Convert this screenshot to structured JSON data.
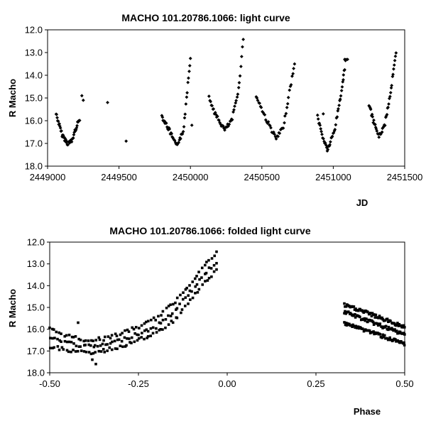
{
  "chart_data": [
    {
      "type": "scatter",
      "title": "MACHO 101.20786.1066: light curve",
      "xlabel": "JD",
      "ylabel": "R Macho",
      "xlim": [
        2449000,
        2451500
      ],
      "ylim": [
        12.0,
        18.0
      ],
      "y_inverted": true,
      "xticks": [
        2449000,
        2449500,
        2450000,
        2450500,
        2451000,
        2451500
      ],
      "xtick_labels": [
        "2449000",
        "2449500",
        "2450000",
        "2450500",
        "2451000",
        "2451500"
      ],
      "yticks": [
        12,
        13,
        14,
        15,
        16,
        17,
        18
      ],
      "ytick_labels": [
        "12.0",
        "13.0",
        "14.0",
        "15.0",
        "16.0",
        "17.0",
        "18.0"
      ],
      "grid": false,
      "series": [
        {
          "marker": "diamond",
          "segments": [
            {
              "x": [
                2449060,
                2449100,
                2449140,
                2449170,
                2449200,
                2449225
              ],
              "y": [
                15.7,
                16.6,
                17.0,
                16.9,
                16.3,
                15.9
              ]
            },
            {
              "x": [
                2449800,
                2449850,
                2449900,
                2449950,
                2449980,
                2450000
              ],
              "y": [
                15.8,
                16.4,
                17.1,
                16.5,
                14.5,
                13.2
              ]
            },
            {
              "x": [
                2450130,
                2450180,
                2450240,
                2450290,
                2450340,
                2450370
              ],
              "y": [
                15.0,
                15.8,
                16.4,
                16.0,
                14.5,
                12.4
              ]
            },
            {
              "x": [
                2450460,
                2450520,
                2450600,
                2450650,
                2450700,
                2450730
              ],
              "y": [
                14.9,
                15.8,
                16.8,
                16.3,
                14.5,
                13.5
              ]
            },
            {
              "x": [
                2450890,
                2450920,
                2450960,
                2451010,
                2451060,
                2451090
              ],
              "y": [
                15.8,
                16.6,
                17.3,
                16.4,
                14.6,
                13.2
              ]
            },
            {
              "x": [
                2451250,
                2451280,
                2451320,
                2451360,
                2451400,
                2451440
              ],
              "y": [
                15.3,
                16.0,
                16.7,
                16.2,
                14.8,
                13.0
              ]
            }
          ],
          "isolated": {
            "x": [
              2449240,
              2449250,
              2449420,
              2449550,
              2450010,
              2450930,
              2451070,
              2451080,
              2451100
            ],
            "y": [
              14.9,
              15.1,
              15.2,
              16.9,
              16.2,
              15.7,
              14.2,
              13.3,
              13.3
            ]
          }
        }
      ]
    },
    {
      "type": "scatter",
      "title": "MACHO 101.20786.1066: folded light curve",
      "xlabel": "Phase",
      "ylabel": "R Macho",
      "xlim": [
        -0.5,
        0.5
      ],
      "ylim": [
        12.0,
        18.0
      ],
      "y_inverted": true,
      "xticks": [
        -0.5,
        -0.25,
        0.0,
        0.25,
        0.5
      ],
      "xtick_labels": [
        "-0.50",
        "-0.25",
        "0.00",
        "0.25",
        "0.50"
      ],
      "yticks": [
        12,
        13,
        14,
        15,
        16,
        17,
        18
      ],
      "ytick_labels": [
        "12.0",
        "13.0",
        "14.0",
        "15.0",
        "16.0",
        "17.0",
        "18.0"
      ],
      "grid": false,
      "series": [
        {
          "marker": "square",
          "bands": [
            {
              "x": [
                -0.5,
                -0.45,
                -0.4,
                -0.35,
                -0.3,
                -0.25,
                -0.2,
                -0.15,
                -0.12,
                -0.09,
                -0.06,
                -0.03
              ],
              "y": [
                16.0,
                16.3,
                16.5,
                16.45,
                16.2,
                15.9,
                15.5,
                14.8,
                14.2,
                13.6,
                13.0,
                12.5
              ]
            },
            {
              "x": [
                -0.5,
                -0.45,
                -0.4,
                -0.35,
                -0.3,
                -0.25,
                -0.2,
                -0.15,
                -0.12,
                -0.09,
                -0.06,
                -0.03
              ],
              "y": [
                16.4,
                16.6,
                16.8,
                16.75,
                16.5,
                16.2,
                15.9,
                15.2,
                14.6,
                14.0,
                13.4,
                12.9
              ]
            },
            {
              "x": [
                -0.5,
                -0.45,
                -0.4,
                -0.35,
                -0.3,
                -0.25,
                -0.2,
                -0.15,
                -0.12,
                -0.09,
                -0.06,
                -0.03
              ],
              "y": [
                16.8,
                16.95,
                17.1,
                17.0,
                16.8,
                16.5,
                16.2,
                15.6,
                15.0,
                14.4,
                13.8,
                13.3
              ]
            },
            {
              "x": [
                0.33,
                0.37,
                0.41,
                0.45,
                0.5
              ],
              "y": [
                14.9,
                15.1,
                15.35,
                15.6,
                15.9
              ]
            },
            {
              "x": [
                0.33,
                0.37,
                0.41,
                0.45,
                0.5
              ],
              "y": [
                15.2,
                15.45,
                15.7,
                15.95,
                16.25
              ]
            },
            {
              "x": [
                0.33,
                0.37,
                0.41,
                0.45,
                0.5
              ],
              "y": [
                15.7,
                15.95,
                16.15,
                16.4,
                16.7
              ]
            }
          ],
          "isolated": {
            "x": [
              -0.42,
              -0.37,
              -0.38
            ],
            "y": [
              15.7,
              17.6,
              17.4
            ]
          }
        }
      ]
    }
  ]
}
